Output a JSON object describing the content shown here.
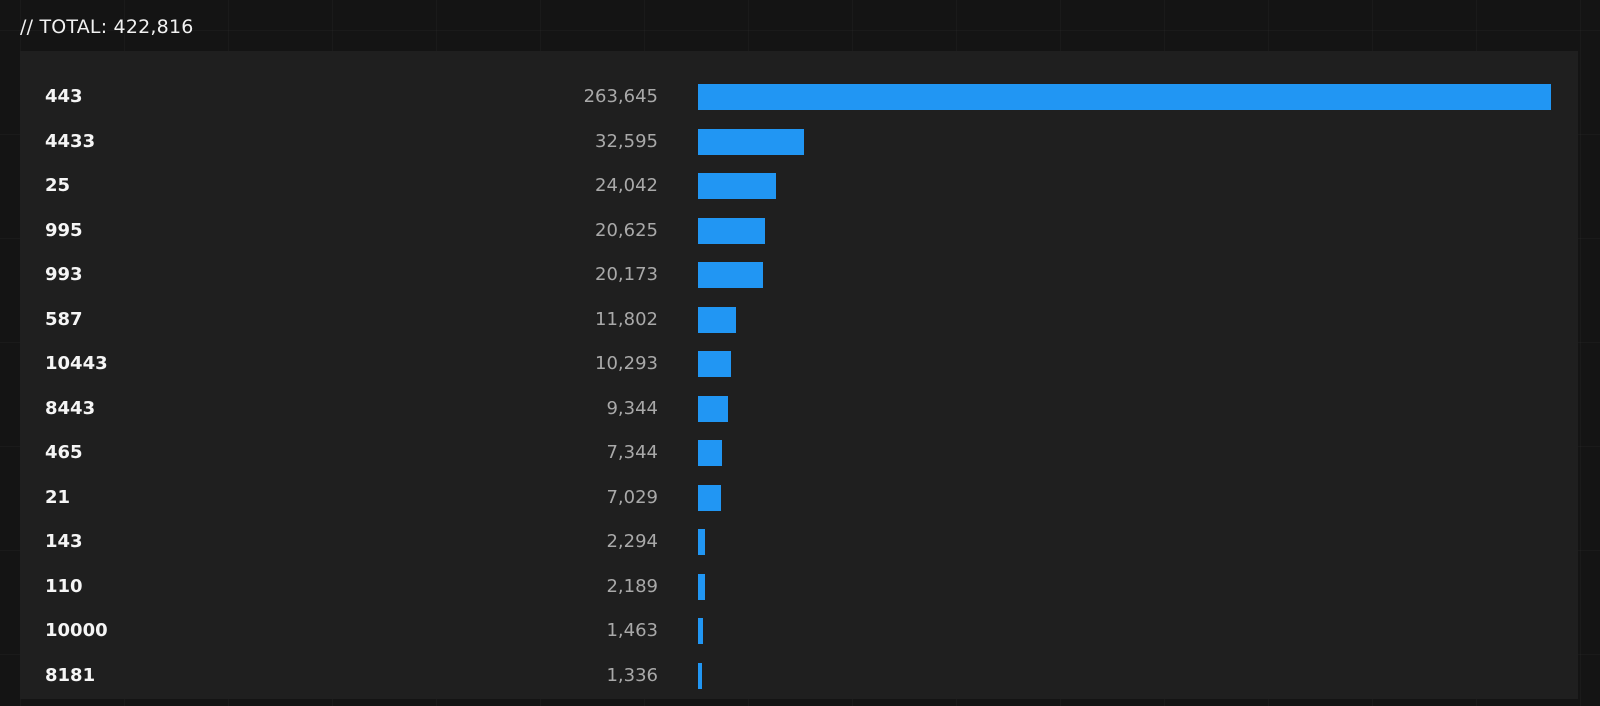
{
  "header": {
    "total_text": "// TOTAL: 422,816"
  },
  "colors": {
    "bar": "#2196f3",
    "panel": "#1f1f1f",
    "background": "#141414"
  },
  "chart_data": {
    "type": "bar",
    "orientation": "horizontal",
    "categories": [
      "443",
      "4433",
      "25",
      "995",
      "993",
      "587",
      "10443",
      "8443",
      "465",
      "21",
      "143",
      "110",
      "10000",
      "8181"
    ],
    "values": [
      263645,
      32595,
      24042,
      20625,
      20173,
      11802,
      10293,
      9344,
      7344,
      7029,
      2294,
      2189,
      1463,
      1336
    ],
    "value_labels": [
      "263,645",
      "32,595",
      "24,042",
      "20,625",
      "20,173",
      "11,802",
      "10,293",
      "9,344",
      "7,344",
      "7,029",
      "2,294",
      "2,189",
      "1,463",
      "1,336"
    ],
    "xlim": [
      0,
      263645
    ],
    "grid": false
  }
}
